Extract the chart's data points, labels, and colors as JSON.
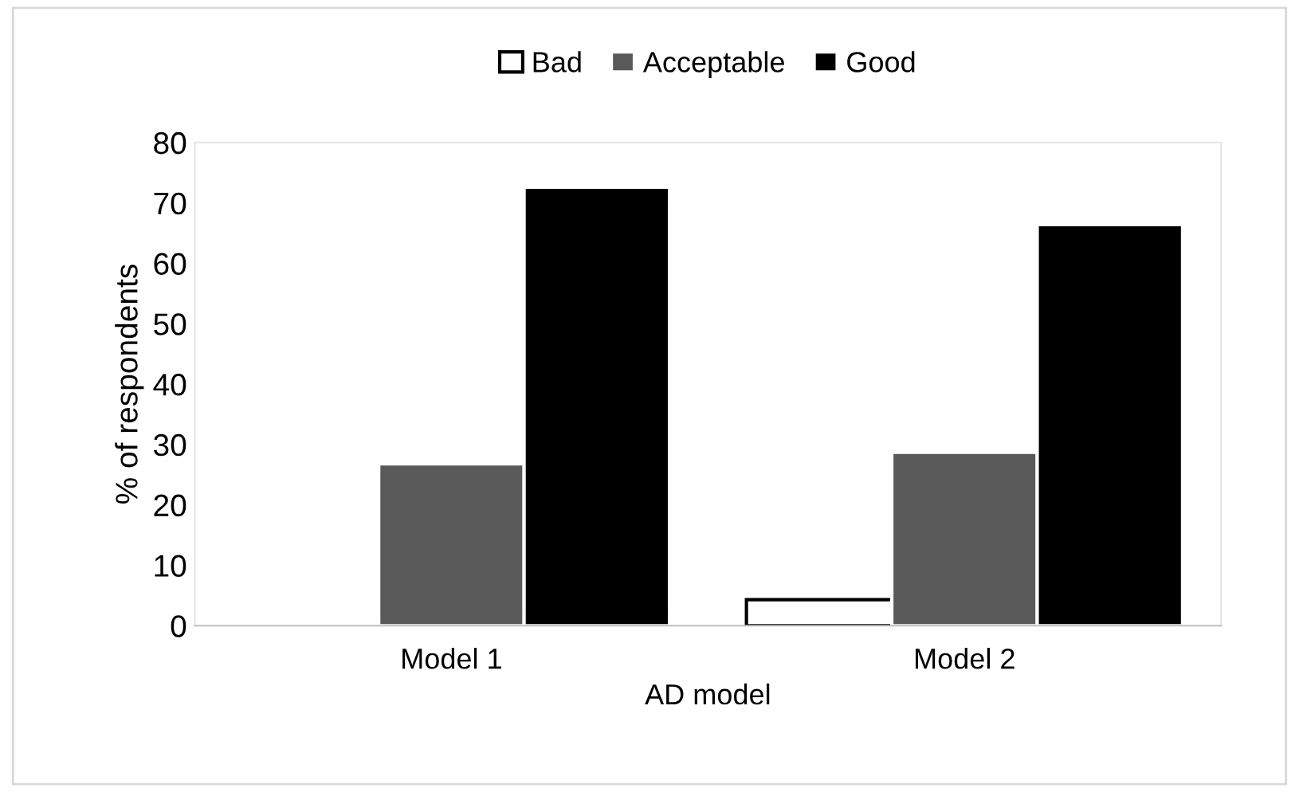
{
  "chart_data": {
    "type": "bar",
    "xlabel": "AD model",
    "ylabel": "% of respondents",
    "categories": [
      "Model 1",
      "Model 2"
    ],
    "series": [
      {
        "name": "Bad",
        "color": "#ffffff",
        "values": [
          0,
          4.3
        ]
      },
      {
        "name": "Acceptable",
        "color": "#595959",
        "values": [
          26.8,
          28.7
        ]
      },
      {
        "name": "Good",
        "color": "#000000",
        "values": [
          72.6,
          66.4
        ]
      }
    ],
    "ylim": [
      0,
      80
    ],
    "yticks": [
      0,
      10,
      20,
      30,
      40,
      50,
      60,
      70,
      80
    ],
    "grid": false,
    "legend": "top"
  }
}
